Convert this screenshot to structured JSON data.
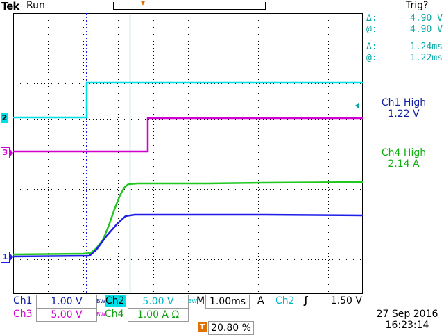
{
  "header": {
    "brand": "Tek",
    "run_status": "Run",
    "trigger_status": "Trig?"
  },
  "colors": {
    "ch1": "#1e1ee8",
    "ch2": "#00e0e8",
    "ch3": "#d000d0",
    "ch4": "#20c820",
    "cursor": "#20a8b0",
    "trigger": "#e07000",
    "readout": "#0aa8a8",
    "meas_ch1": "#1020a0",
    "meas_ch4": "#10b010"
  },
  "channel_markers": {
    "ch1": "1",
    "ch2": "2",
    "ch3": "3"
  },
  "trigger_marker": "T",
  "cursor_readouts": {
    "delta_v_symbol": "Δ:",
    "delta_v": "4.90 V",
    "at_v_symbol": "@:",
    "at_v": "4.90 V",
    "delta_t_symbol": "Δ:",
    "delta_t": "1.24ms",
    "at_t_symbol": "@:",
    "at_t": "1.22ms"
  },
  "measurements": [
    {
      "label": "Ch1 High",
      "value": "1.22 V"
    },
    {
      "label": "Ch4 High",
      "value": "2.14 A"
    }
  ],
  "bottom": {
    "ch1_label": "Ch1",
    "ch1_scale": "1.00 V",
    "ch2_label": "Ch2",
    "ch2_scale": "5.00 V",
    "ch3_label": "Ch3",
    "ch3_scale": "5.00 V",
    "ch4_label": "Ch4",
    "ch4_scale": "1.00 A Ω",
    "bw_symbol": "BW",
    "time_label": "M",
    "time_scale": "1.00ms",
    "acq_mode": "A",
    "trig_source": "Ch2",
    "trig_slope": "ʃ",
    "trig_level": "1.50 V",
    "trig_pos_icon": "T",
    "trig_position": "20.80 %",
    "date": "27 Sep  2016",
    "time": "16:23:14"
  }
}
